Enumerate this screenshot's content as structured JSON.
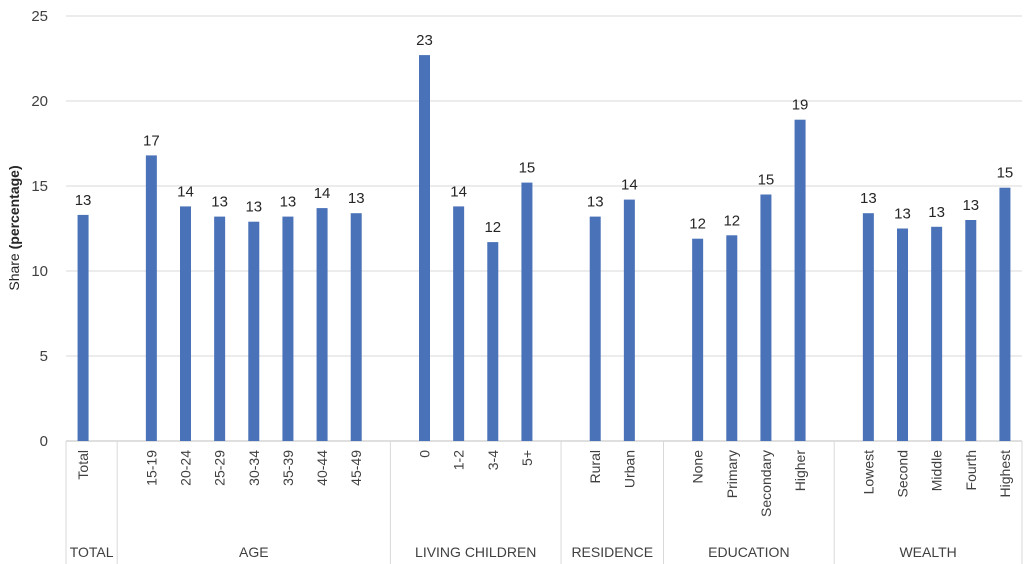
{
  "chart_data": {
    "type": "bar",
    "ylabel_prefix": "Share ",
    "ylabel_bold": "(percentage)",
    "ylim": [
      0,
      25
    ],
    "yticks": [
      0,
      5,
      10,
      15,
      20,
      25
    ],
    "grid": true,
    "bar_color": "#4a72b8",
    "groups": [
      {
        "label": "TOTAL",
        "categories": [
          "Total"
        ],
        "values": [
          13.3
        ],
        "labels": [
          "13"
        ]
      },
      {
        "label": "AGE",
        "categories": [
          "15-19",
          "20-24",
          "25-29",
          "30-34",
          "35-39",
          "40-44",
          "45-49"
        ],
        "values": [
          16.8,
          13.8,
          13.2,
          12.9,
          13.2,
          13.7,
          13.4
        ],
        "labels": [
          "17",
          "14",
          "13",
          "13",
          "13",
          "14",
          "13"
        ]
      },
      {
        "label": "LIVING CHILDREN",
        "categories": [
          "0",
          "1-2",
          "3-4",
          "5+"
        ],
        "values": [
          22.7,
          13.8,
          11.7,
          15.2
        ],
        "labels": [
          "23",
          "14",
          "12",
          "15"
        ]
      },
      {
        "label": "RESIDENCE",
        "categories": [
          "Rural",
          "Urban"
        ],
        "values": [
          13.2,
          14.2
        ],
        "labels": [
          "13",
          "14"
        ]
      },
      {
        "label": "EDUCATION",
        "categories": [
          "None",
          "Primary",
          "Secondary",
          "Higher"
        ],
        "values": [
          11.9,
          12.1,
          14.5,
          18.9
        ],
        "labels": [
          "12",
          "12",
          "15",
          "19"
        ]
      },
      {
        "label": "WEALTH",
        "categories": [
          "Lowest",
          "Second",
          "Middle",
          "Fourth",
          "Highest"
        ],
        "values": [
          13.4,
          12.5,
          12.6,
          13.0,
          14.9
        ],
        "labels": [
          "13",
          "13",
          "13",
          "13",
          "15"
        ]
      }
    ]
  }
}
